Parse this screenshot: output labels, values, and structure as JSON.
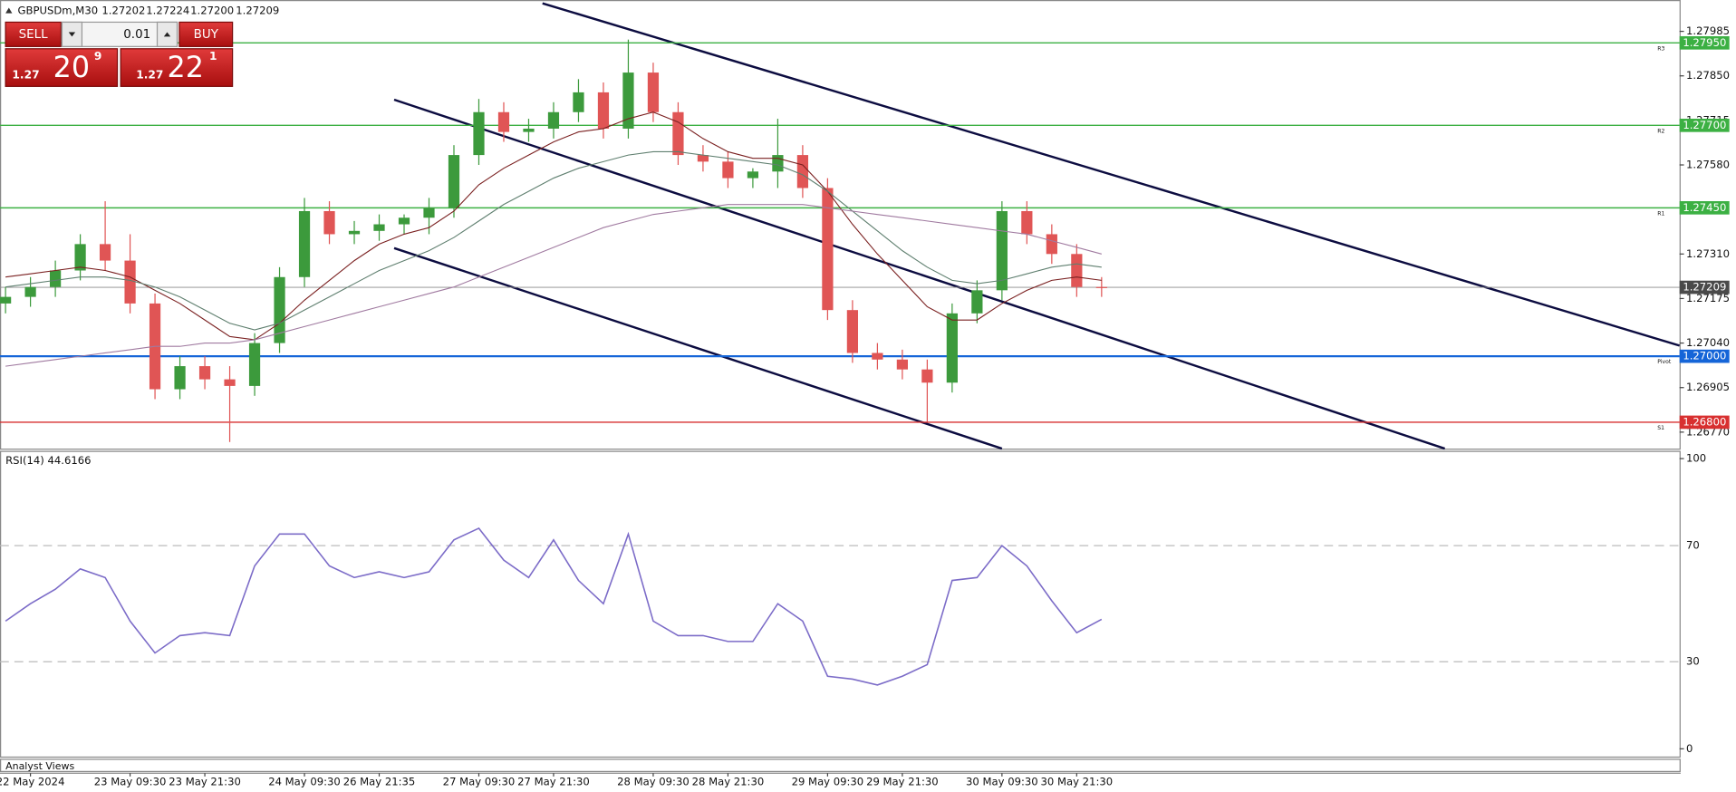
{
  "header": {
    "symbol": "GBPUSDm,M30",
    "prices": [
      "1.27202",
      "1.27224",
      "1.27200",
      "1.27209"
    ]
  },
  "trade_panel": {
    "sell": "SELL",
    "buy": "BUY",
    "volume": "0.01",
    "sell_price": {
      "big": "1.27",
      "main": "20",
      "small": "9"
    },
    "buy_price": {
      "big": "1.27",
      "main": "22",
      "small": "1"
    }
  },
  "footer": {
    "tab": "Analyst Views"
  },
  "chart_data": {
    "type": "candlestick",
    "categories": [
      null,
      "22 May 2024",
      null,
      null,
      null,
      "23 May 09:30",
      null,
      null,
      "23 May 21:30",
      null,
      null,
      null,
      "24 May 09:30",
      null,
      null,
      "26 May 21:35",
      null,
      null,
      null,
      "27 May 09:30",
      null,
      null,
      "27 May 21:30",
      null,
      null,
      null,
      "28 May 09:30",
      null,
      null,
      "28 May 21:30",
      null,
      null,
      null,
      "29 May 09:30",
      null,
      null,
      "29 May 21:30",
      null,
      null,
      null,
      "30 May 09:30",
      null,
      null,
      "30 May 21:30",
      null
    ],
    "candles": {
      "open": [
        1.2716,
        1.2718,
        1.2721,
        1.2726,
        1.2734,
        1.2729,
        1.2716,
        1.269,
        1.2697,
        1.2693,
        1.2691,
        1.2704,
        1.2724,
        1.2744,
        1.2737,
        1.2738,
        1.274,
        1.2742,
        1.2745,
        1.2761,
        1.2774,
        1.2768,
        1.2769,
        1.2774,
        1.278,
        1.2769,
        1.2786,
        1.2774,
        1.2761,
        1.2759,
        1.2754,
        1.2756,
        1.2761,
        1.2751,
        1.2714,
        1.2701,
        1.2699,
        1.2696,
        1.2692,
        1.2713,
        1.272,
        1.2744,
        1.2737,
        1.2731,
        1.2721
      ],
      "high": [
        1.2721,
        1.2724,
        1.2729,
        1.2737,
        1.2747,
        1.2737,
        1.2719,
        1.27,
        1.27,
        1.2697,
        1.2707,
        1.2727,
        1.2748,
        1.2747,
        1.2741,
        1.2743,
        1.2743,
        1.2748,
        1.2764,
        1.2778,
        1.2777,
        1.2772,
        1.2777,
        1.2784,
        1.2783,
        1.2796,
        1.2789,
        1.2777,
        1.2764,
        1.2762,
        1.2757,
        1.2772,
        1.2764,
        1.2754,
        1.2717,
        1.2704,
        1.2702,
        1.2699,
        1.2716,
        1.2723,
        1.2747,
        1.2747,
        1.274,
        1.2734,
        1.2724
      ],
      "low": [
        1.2713,
        1.2715,
        1.2718,
        1.2723,
        1.2726,
        1.2713,
        1.2687,
        1.2687,
        1.269,
        1.2674,
        1.2688,
        1.2701,
        1.2721,
        1.2734,
        1.2734,
        1.2735,
        1.2737,
        1.2737,
        1.2742,
        1.2758,
        1.2765,
        1.2765,
        1.2766,
        1.2771,
        1.2766,
        1.2766,
        1.2771,
        1.2758,
        1.2756,
        1.2751,
        1.2751,
        1.2751,
        1.2748,
        1.2711,
        1.2698,
        1.2696,
        1.2693,
        1.268,
        1.2689,
        1.271,
        1.2717,
        1.2734,
        1.2728,
        1.2718,
        1.2718
      ],
      "close": [
        1.2718,
        1.2721,
        1.2726,
        1.2734,
        1.2729,
        1.2716,
        1.269,
        1.2697,
        1.2693,
        1.2691,
        1.2704,
        1.2724,
        1.2744,
        1.2737,
        1.2738,
        1.274,
        1.2742,
        1.2745,
        1.2761,
        1.2774,
        1.2768,
        1.2769,
        1.2774,
        1.278,
        1.2769,
        1.2786,
        1.2774,
        1.2761,
        1.2759,
        1.2754,
        1.2756,
        1.2761,
        1.2751,
        1.2714,
        1.2701,
        1.2699,
        1.2696,
        1.2692,
        1.2713,
        1.272,
        1.2744,
        1.2737,
        1.2731,
        1.2721,
        1.27209
      ]
    },
    "up_color": "#3c9a3c",
    "down_color": "#e05555",
    "ma": [
      {
        "color": "#7a2020",
        "values": [
          1.2724,
          1.2725,
          1.2726,
          1.2727,
          1.2726,
          1.2724,
          1.272,
          1.2716,
          1.2711,
          1.2706,
          1.2705,
          1.271,
          1.2717,
          1.2723,
          1.2729,
          1.2734,
          1.2737,
          1.2739,
          1.2744,
          1.2752,
          1.2757,
          1.2761,
          1.2765,
          1.2768,
          1.2769,
          1.2772,
          1.2774,
          1.2771,
          1.2766,
          1.2762,
          1.276,
          1.276,
          1.2758,
          1.275,
          1.274,
          1.2731,
          1.2723,
          1.2715,
          1.2711,
          1.2711,
          1.2716,
          1.272,
          1.2723,
          1.2724,
          1.2723
        ]
      },
      {
        "color": "#5f7f6f",
        "values": [
          1.2721,
          1.2722,
          1.2723,
          1.2724,
          1.2724,
          1.2723,
          1.2721,
          1.2718,
          1.2714,
          1.271,
          1.2708,
          1.271,
          1.2714,
          1.2718,
          1.2722,
          1.2726,
          1.2729,
          1.2732,
          1.2736,
          1.2741,
          1.2746,
          1.275,
          1.2754,
          1.2757,
          1.2759,
          1.2761,
          1.2762,
          1.2762,
          1.2761,
          1.276,
          1.2759,
          1.2758,
          1.2755,
          1.275,
          1.2744,
          1.2738,
          1.2732,
          1.2727,
          1.2723,
          1.2722,
          1.2723,
          1.2725,
          1.2727,
          1.2728,
          1.2727
        ]
      },
      {
        "color": "#a07aa0",
        "values": [
          1.2697,
          1.2698,
          1.2699,
          1.27,
          1.2701,
          1.2702,
          1.2703,
          1.2703,
          1.2704,
          1.2704,
          1.2705,
          1.2707,
          1.2709,
          1.2711,
          1.2713,
          1.2715,
          1.2717,
          1.2719,
          1.2721,
          1.2724,
          1.2727,
          1.273,
          1.2733,
          1.2736,
          1.2739,
          1.2741,
          1.2743,
          1.2744,
          1.2745,
          1.2746,
          1.2746,
          1.2746,
          1.2746,
          1.2745,
          1.2744,
          1.2743,
          1.2742,
          1.2741,
          1.274,
          1.2739,
          1.2738,
          1.2737,
          1.2735,
          1.2733,
          1.2731
        ]
      }
    ],
    "ylim": [
      1.2672,
      1.2808
    ],
    "yticks": [
      1.27985,
      {
        "value": 1.2785,
        "label": "1.27850"
      },
      1.27715,
      {
        "value": 1.2758,
        "label": "1.27580"
      },
      {
        "value": 1.2745,
        "label": "1.27450"
      },
      {
        "value": 1.2731,
        "label": "1.27310"
      },
      1.27175,
      {
        "value": 1.2704,
        "label": "1.27040"
      },
      1.26905,
      {
        "value": 1.2677,
        "label": "1.26770"
      }
    ],
    "levels": [
      {
        "name": "R3",
        "value": 1.2795,
        "value_label": "1.27950",
        "color": "#3cb043"
      },
      {
        "name": "R2",
        "value": 1.277,
        "value_label": "1.27700",
        "color": "#3cb043"
      },
      {
        "name": "R1",
        "value": 1.2745,
        "value_label": "1.27450",
        "color": "#3cb043"
      },
      {
        "name": "Pivot",
        "value": 1.27,
        "value_label": "1.27000",
        "color": "#1565d8"
      },
      {
        "name": "S1",
        "value": 1.268,
        "value_label": "1.26800",
        "color": "#d83030"
      }
    ],
    "current_price": 1.27209,
    "rsi": {
      "title": "RSI(14) 44.6166",
      "color": "#7c6cc8",
      "values": [
        44,
        50,
        55,
        62,
        59,
        44,
        33,
        39,
        40,
        39,
        63,
        74,
        74,
        63,
        59,
        61,
        59,
        61,
        72,
        76,
        65,
        59,
        72,
        58,
        50,
        74,
        44,
        39,
        39,
        37,
        37,
        50,
        44,
        25,
        24,
        22,
        25,
        29,
        58,
        59,
        70,
        63,
        51,
        40,
        44.6166
      ],
      "ylim": [
        0,
        100
      ],
      "yticks": [
        0,
        30,
        70,
        100
      ]
    }
  }
}
